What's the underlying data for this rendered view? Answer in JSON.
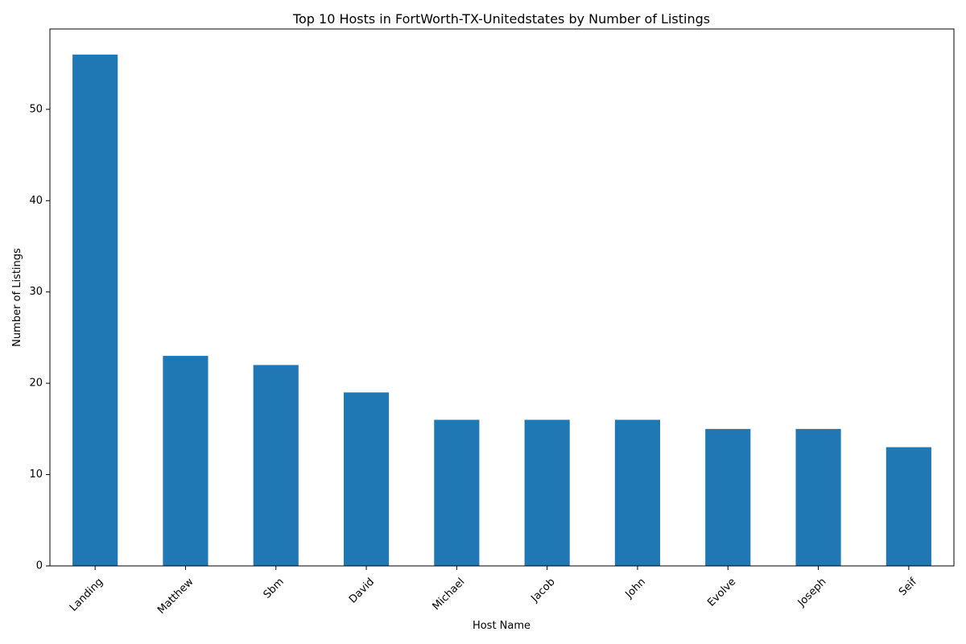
{
  "chart_data": {
    "type": "bar",
    "title": "Top 10 Hosts in FortWorth-TX-Unitedstates by Number of Listings",
    "xlabel": "Host Name",
    "ylabel": "Number of Listings",
    "categories": [
      "Landing",
      "Matthew",
      "Sbm",
      "David",
      "Michael",
      "Jacob",
      "John",
      "Evolve",
      "Joseph",
      "Seif"
    ],
    "values": [
      56,
      23,
      22,
      19,
      16,
      16,
      16,
      15,
      15,
      13
    ],
    "ylim": [
      0,
      58.8
    ],
    "yticks": [
      0,
      10,
      20,
      30,
      40,
      50
    ],
    "grid": false,
    "bar_color": "#1f77b4"
  }
}
